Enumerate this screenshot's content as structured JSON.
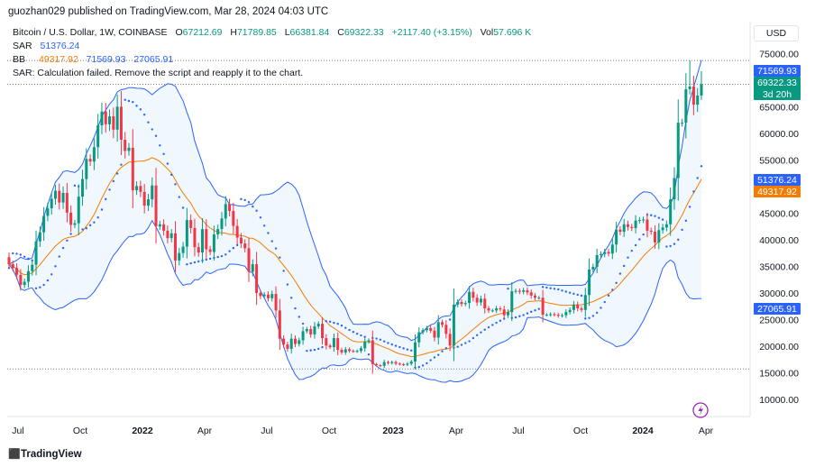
{
  "header": {
    "publisher_line": "guozhan029 published on TradingView.com, Mar 28, 2024 04:03 UTC"
  },
  "legend": {
    "symbol": "Bitcoin / U.S. Dollar, 1W, COINBASE",
    "open_key": "O",
    "open": "67212.69",
    "high_key": "H",
    "high": "71789.85",
    "low_key": "L",
    "low": "66381.84",
    "close_key": "C",
    "close": "69322.33",
    "change": "+2117.40 (+3.15%)",
    "vol_key": "Vol",
    "vol": "57.696 K",
    "sar_label": "SAR",
    "sar_value": "51376.24",
    "bb_label": "BB",
    "bb_basis": "49317.92",
    "bb_upper": "71569.93",
    "bb_lower": "27065.91",
    "sar_error": "SAR: Calculation failed. Remove the script and reapply it to the chart."
  },
  "currency": "USD",
  "footer": {
    "brand": "TradingView"
  },
  "colors": {
    "up": "#089981",
    "down": "#f23645",
    "bb_line": "#2962ff",
    "bb_basis": "#f57c00",
    "bb_fill": "#e3f2fd",
    "sar": "#2962ff"
  },
  "chart_data": {
    "type": "candlestick",
    "timeframe": "1W",
    "symbol": "BTCUSD",
    "y_axis": {
      "ticks": [
        10000,
        15000,
        20000,
        25000,
        30000,
        35000,
        40000,
        45000,
        50000,
        55000,
        60000,
        65000,
        70000,
        75000
      ],
      "tick_labels": [
        "10000.00",
        "15000.00",
        "20000.00",
        "25000.00",
        "30000.00",
        "35000.00",
        "40000.00",
        "45000.00",
        "50000.00",
        "55000.00",
        "60000.00",
        "65000.00",
        "70000.00",
        "75000.00"
      ],
      "ylim": [
        5000,
        77500
      ]
    },
    "x_axis": {
      "tick_labels": [
        "Jul",
        "Oct",
        "2022",
        "Apr",
        "Jul",
        "Oct",
        "2023",
        "Apr",
        "Jul",
        "Oct",
        "2024",
        "Apr"
      ],
      "bold_labels": [
        "2022",
        "2023",
        "2024"
      ]
    },
    "price_labels": [
      {
        "name": "BB upper",
        "text": "71569.93",
        "value": 71569.93,
        "color": "#2962ff"
      },
      {
        "name": "Last price",
        "text": "69322.33",
        "value": 69322.33,
        "color": "#089981",
        "sub": "3d 20h"
      },
      {
        "name": "SAR",
        "text": "51376.24",
        "value": 51376.24,
        "color": "#2962ff"
      },
      {
        "name": "BB basis",
        "text": "49317.92",
        "value": 49317.92,
        "color": "#f57c00"
      },
      {
        "name": "BB lower",
        "text": "27065.91",
        "value": 27065.91,
        "color": "#2962ff"
      }
    ],
    "horizontal_lines": [
      73800,
      69322.33,
      15800
    ],
    "weekly_closes": [
      35500,
      34800,
      33500,
      31600,
      32200,
      34200,
      35400,
      39800,
      41500,
      44600,
      46000,
      47800,
      49300,
      47100,
      48900,
      45200,
      42900,
      43200,
      48200,
      51500,
      55300,
      54800,
      57500,
      61600,
      64200,
      61800,
      63300,
      60800,
      65100,
      58900,
      56800,
      57400,
      49400,
      50200,
      49100,
      46500,
      47700,
      50300,
      42600,
      43000,
      41800,
      40400,
      41300,
      36200,
      37600,
      38800,
      43800,
      42300,
      38700,
      37700,
      42100,
      38300,
      37800,
      41100,
      42100,
      44100,
      46800,
      45500,
      42700,
      40500,
      39400,
      38500,
      34100,
      35500,
      30100,
      29500,
      29800,
      29100,
      29900,
      26800,
      21500,
      20400,
      19600,
      21500,
      20500,
      21200,
      22900,
      23300,
      22300,
      23800,
      24300,
      21600,
      20200,
      19900,
      21600,
      19400,
      18900,
      19500,
      19200,
      19100,
      19200,
      19700,
      20900,
      21200,
      16700,
      16500,
      16400,
      17100,
      16900,
      17100,
      16800,
      16700,
      16600,
      16800,
      17200,
      20800,
      22700,
      23100,
      23500,
      23000,
      21700,
      24600,
      24100,
      22400,
      20200,
      27900,
      28400,
      28000,
      28200,
      30300,
      29200,
      28300,
      29000,
      27200,
      26800,
      26800,
      27200,
      27000,
      25900,
      26500,
      30400,
      30500,
      30300,
      30600,
      30200,
      29600,
      29200,
      29200,
      26000,
      26000,
      26100,
      26000,
      25800,
      25900,
      26500,
      26900,
      27900,
      27200,
      26900,
      29700,
      34500,
      35000,
      37200,
      37400,
      37800,
      37500,
      39200,
      42000,
      41600,
      43000,
      42500,
      42300,
      43700,
      43800,
      43900,
      41800,
      41600,
      39600,
      41900,
      42400,
      43000,
      47700,
      51700,
      62100,
      62100,
      68400,
      68900,
      65500,
      67210,
      69322.33
    ]
  }
}
